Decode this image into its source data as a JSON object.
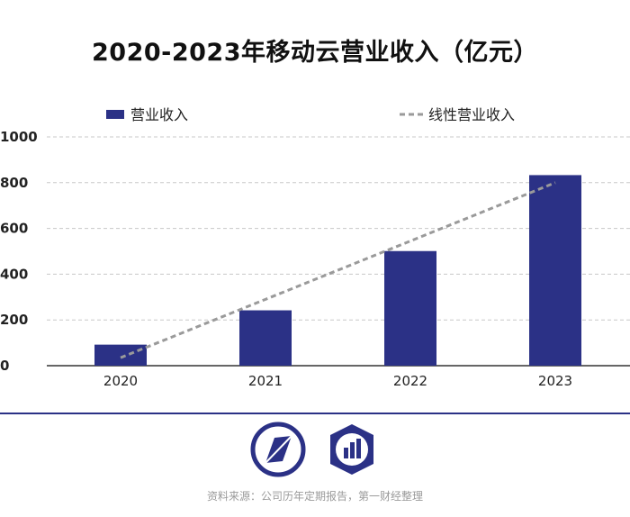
{
  "chart_data": {
    "type": "bar",
    "title": "2020-2023年移动云营业收入（亿元）",
    "categories": [
      "2020",
      "2021",
      "2022",
      "2023"
    ],
    "series": [
      {
        "name": "营业收入",
        "type": "bar",
        "values": [
          92,
          242,
          501,
          833
        ],
        "color": "#2b3186"
      },
      {
        "name": "线性营业收入",
        "type": "line",
        "style": "dashed",
        "values": [
          35,
          290,
          545,
          800
        ],
        "color": "#9a9a9a"
      }
    ],
    "yticks": [
      "0",
      "200",
      "400",
      "600",
      "800",
      "1000"
    ],
    "ylim": [
      0,
      1000
    ],
    "grid": true,
    "legend_position": "top"
  },
  "footer": {
    "source": "资料来源：公司历年定期报告，第一财经整理"
  },
  "logos": {
    "left_icon": "diamond-leaf-logo",
    "right_icon": "bar-chart-shield-logo",
    "color": "#2b3186"
  }
}
